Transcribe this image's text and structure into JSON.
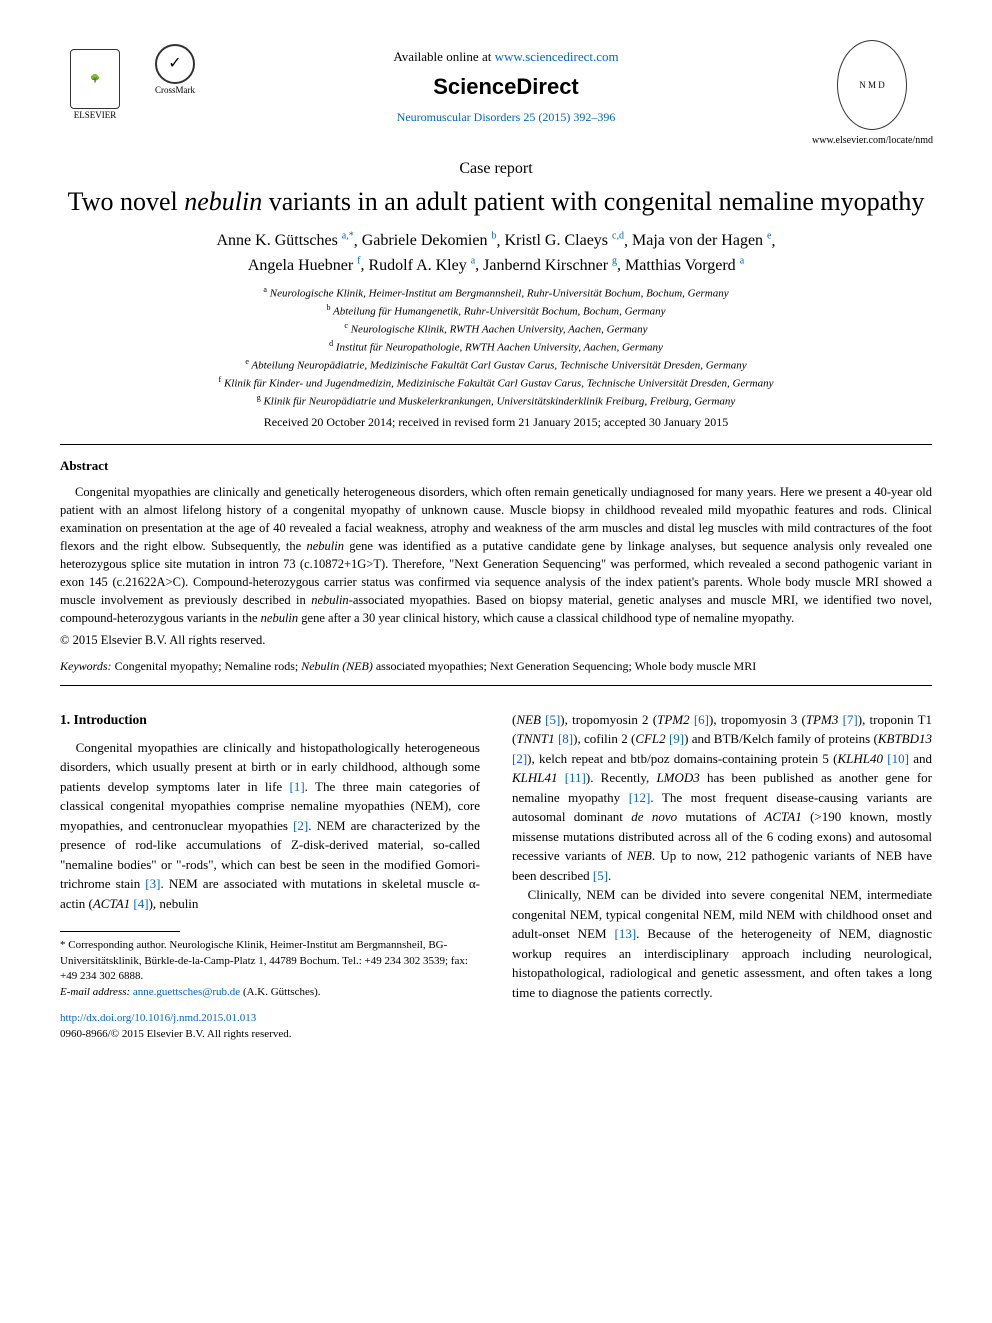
{
  "header": {
    "elsevier_label": "ELSEVIER",
    "crossmark_label": "CrossMark",
    "available_prefix": "Available online at ",
    "available_url": "www.sciencedirect.com",
    "sciencedirect": "ScienceDirect",
    "journal_ref": "Neuromuscular Disorders 25 (2015) 392–396",
    "nmd_badge": "N M D",
    "journal_url": "www.elsevier.com/locate/nmd"
  },
  "article": {
    "type": "Case report",
    "title_pre": "Two novel ",
    "title_ital": "nebulin",
    "title_post": " variants in an adult patient with congenital nemaline myopathy",
    "authors": [
      {
        "name": "Anne K. Güttsches",
        "sup": "a,*"
      },
      {
        "name": "Gabriele Dekomien",
        "sup": "b"
      },
      {
        "name": "Kristl G. Claeys",
        "sup": "c,d"
      },
      {
        "name": "Maja von der Hagen",
        "sup": "e"
      },
      {
        "name": "Angela Huebner",
        "sup": "f"
      },
      {
        "name": "Rudolf A. Kley",
        "sup": "a"
      },
      {
        "name": "Janbernd Kirschner",
        "sup": "g"
      },
      {
        "name": "Matthias Vorgerd",
        "sup": "a"
      }
    ],
    "affiliations": [
      {
        "sup": "a",
        "text": "Neurologische Klinik, Heimer-Institut am Bergmannsheil, Ruhr-Universität Bochum, Bochum, Germany"
      },
      {
        "sup": "b",
        "text": "Abteilung für Humangenetik, Ruhr-Universität Bochum, Bochum, Germany"
      },
      {
        "sup": "c",
        "text": "Neurologische Klinik, RWTH Aachen University, Aachen, Germany"
      },
      {
        "sup": "d",
        "text": "Institut für Neuropathologie, RWTH Aachen University, Aachen, Germany"
      },
      {
        "sup": "e",
        "text": "Abteilung Neuropädiatrie, Medizinische Fakultät Carl Gustav Carus, Technische Universität Dresden, Germany"
      },
      {
        "sup": "f",
        "text": "Klinik für Kinder- und Jugendmedizin, Medizinische Fakultät Carl Gustav Carus, Technische Universität Dresden, Germany"
      },
      {
        "sup": "g",
        "text": "Klinik für Neuropädiatrie und Muskelerkrankungen, Universitätskinderklinik Freiburg, Freiburg, Germany"
      }
    ],
    "dates": "Received 20 October 2014; received in revised form 21 January 2015; accepted 30 January 2015"
  },
  "abstract": {
    "heading": "Abstract",
    "body_parts": [
      "Congenital myopathies are clinically and genetically heterogeneous disorders, which often remain genetically undiagnosed for many years. Here we present a 40-year old patient with an almost lifelong history of a congenital myopathy of unknown cause. Muscle biopsy in childhood revealed mild myopathic features and rods. Clinical examination on presentation at the age of 40 revealed a facial weakness, atrophy and weakness of the arm muscles and distal leg muscles with mild contractures of the foot flexors and the right elbow. Subsequently, the ",
      "nebulin",
      " gene was identified as a putative candidate gene by linkage analyses, but sequence analysis only revealed one heterozygous splice site mutation in intron 73 (c.10872+1G>T). Therefore, \"Next Generation Sequencing\" was performed, which revealed a second pathogenic variant in exon 145 (c.21622A>C). Compound-heterozygous carrier status was confirmed via sequence analysis of the index patient's parents. Whole body muscle MRI showed a muscle involvement as previously described in ",
      "nebulin",
      "-associated myopathies. Based on biopsy material, genetic analyses and muscle MRI, we identified two novel, compound-heterozygous variants in the ",
      "nebulin",
      " gene after a 30 year clinical history, which cause a classical childhood type of nemaline myopathy."
    ],
    "copyright": "© 2015 Elsevier B.V. All rights reserved.",
    "keywords_label": "Keywords:",
    "keywords_text": " Congenital myopathy; Nemaline rods; ",
    "keywords_ital": "Nebulin (NEB)",
    "keywords_text2": " associated myopathies; Next Generation Sequencing; Whole body muscle MRI"
  },
  "intro": {
    "heading": "1.  Introduction",
    "col1_runs": [
      {
        "t": "Congenital myopathies are clinically and histopathologically heterogeneous disorders, which usually present at birth or in early childhood, although some patients develop symptoms later in life "
      },
      {
        "t": "[1]",
        "link": true
      },
      {
        "t": ". The three main categories of classical congenital myopathies comprise nemaline myopathies (NEM), core myopathies, and centronuclear myopathies "
      },
      {
        "t": "[2]",
        "link": true
      },
      {
        "t": ". NEM are characterized by the presence of rod-like accumulations of Z-disk-derived material, so-called \"nemaline bodies\" or \"-rods\", which can best be seen in the modified Gomori-trichrome stain "
      },
      {
        "t": "[3]",
        "link": true
      },
      {
        "t": ". NEM are associated with mutations in skeletal muscle α-actin ("
      },
      {
        "t": "ACTA1 ",
        "ital": true
      },
      {
        "t": "[4]",
        "link": true
      },
      {
        "t": "), nebulin"
      }
    ],
    "col2_p1_runs": [
      {
        "t": "("
      },
      {
        "t": "NEB ",
        "ital": true
      },
      {
        "t": "[5]",
        "link": true
      },
      {
        "t": "), tropomyosin 2 ("
      },
      {
        "t": "TPM2 ",
        "ital": true
      },
      {
        "t": "[6]",
        "link": true
      },
      {
        "t": "), tropomyosin 3 ("
      },
      {
        "t": "TPM3 ",
        "ital": true
      },
      {
        "t": "[7]",
        "link": true
      },
      {
        "t": "), troponin T1 ("
      },
      {
        "t": "TNNT1 ",
        "ital": true
      },
      {
        "t": "[8]",
        "link": true
      },
      {
        "t": "), cofilin 2 ("
      },
      {
        "t": "CFL2 ",
        "ital": true
      },
      {
        "t": "[9]",
        "link": true
      },
      {
        "t": ") and BTB/Kelch family of proteins ("
      },
      {
        "t": "KBTBD13 ",
        "ital": true
      },
      {
        "t": "[2]",
        "link": true
      },
      {
        "t": "), kelch repeat and btb/poz domains-containing protein 5 ("
      },
      {
        "t": "KLHL40 ",
        "ital": true
      },
      {
        "t": "[10]",
        "link": true
      },
      {
        "t": " and "
      },
      {
        "t": "KLHL41 ",
        "ital": true
      },
      {
        "t": "[11]",
        "link": true
      },
      {
        "t": "). Recently, "
      },
      {
        "t": "LMOD3",
        "ital": true
      },
      {
        "t": " has been published as another gene for nemaline myopathy "
      },
      {
        "t": "[12]",
        "link": true
      },
      {
        "t": ". The most frequent disease-causing variants are autosomal dominant "
      },
      {
        "t": "de novo",
        "ital": true
      },
      {
        "t": " mutations of "
      },
      {
        "t": "ACTA1",
        "ital": true
      },
      {
        "t": " (>190 known, mostly missense mutations distributed across all of the 6 coding exons) and autosomal recessive variants of "
      },
      {
        "t": "NEB",
        "ital": true
      },
      {
        "t": ". Up to now, 212 pathogenic variants of NEB have been described "
      },
      {
        "t": "[5]",
        "link": true
      },
      {
        "t": "."
      }
    ],
    "col2_p2_runs": [
      {
        "t": "Clinically, NEM can be divided into severe congenital NEM, intermediate congenital NEM, typical congenital NEM, mild NEM with childhood onset and adult-onset NEM "
      },
      {
        "t": "[13]",
        "link": true
      },
      {
        "t": ". Because of the heterogeneity of NEM, diagnostic workup requires an interdisciplinary approach including neurological, histopathological, radiological and genetic assessment, and often takes a long time to diagnose the patients correctly."
      }
    ]
  },
  "footnote": {
    "corr": "* Corresponding author. Neurologische Klinik, Heimer-Institut am Bergmannsheil, BG-Universitätsklinik, Bürkle-de-la-Camp-Platz 1, 44789 Bochum. Tel.: +49 234 302 3539; fax: +49 234 302 6888.",
    "email_label": "E-mail address:",
    "email": "anne.guettsches@rub.de",
    "email_suffix": " (A.K. Güttsches).",
    "doi": "http://dx.doi.org/10.1016/j.nmd.2015.01.013",
    "issn": "0960-8966/© 2015 Elsevier B.V. All rights reserved."
  },
  "colors": {
    "link": "#0066cc",
    "text": "#000000",
    "rule": "#000000"
  }
}
